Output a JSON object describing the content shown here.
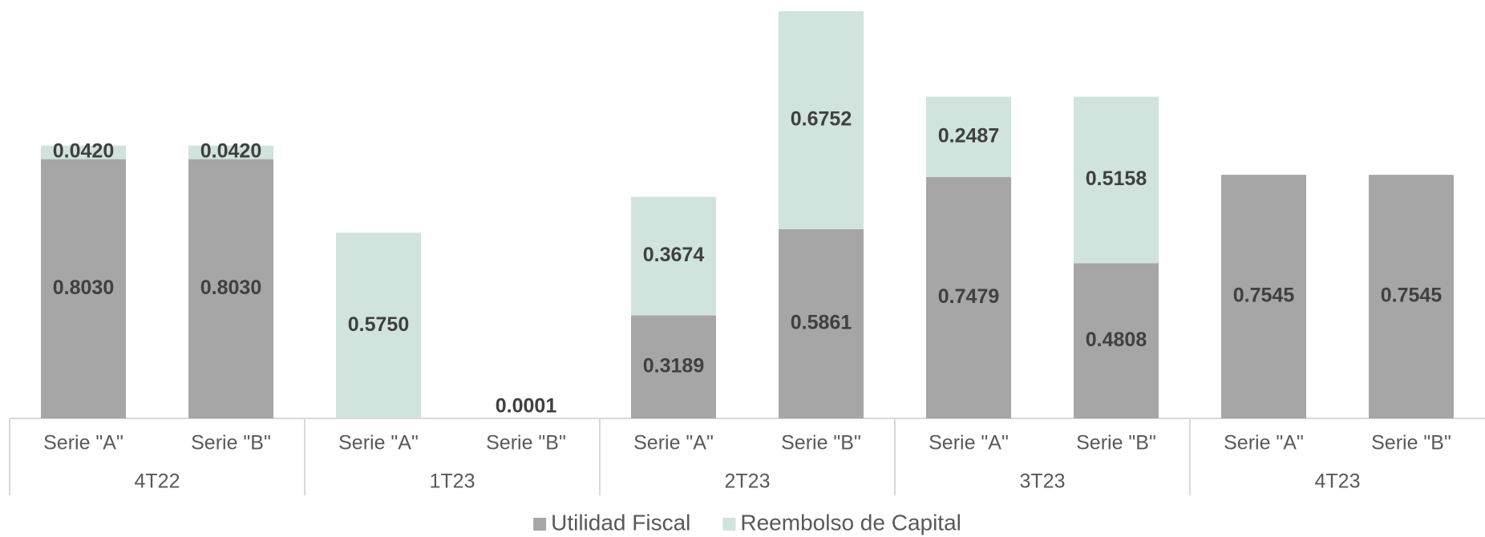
{
  "chart_data": {
    "type": "stacked_bar",
    "categories": [
      "Serie \"A\"",
      "Serie \"B\"",
      "Serie \"A\"",
      "Serie \"B\"",
      "Serie \"A\"",
      "Serie \"B\"",
      "Serie \"A\"",
      "Serie \"B\"",
      "Serie \"A\"",
      "Serie \"B\""
    ],
    "groups": [
      "4T22",
      "1T23",
      "2T23",
      "3T23",
      "4T23"
    ],
    "series": [
      {
        "name": "Utilidad Fiscal",
        "color": "#a6a6a6",
        "values": [
          0.803,
          0.803,
          null,
          null,
          0.3189,
          0.5861,
          0.7479,
          0.4808,
          0.7545,
          0.7545
        ],
        "value_labels": [
          "0.8030",
          "0.8030",
          null,
          null,
          "0.3189",
          "0.5861",
          "0.7479",
          "0.4808",
          "0.7545",
          "0.7545"
        ]
      },
      {
        "name": "Reembolso de Capital",
        "color": "#d0e3dc",
        "values": [
          0.042,
          0.042,
          0.575,
          0.0001,
          0.3674,
          0.6752,
          0.2487,
          0.5158,
          null,
          null
        ],
        "value_labels": [
          "0.0420",
          "0.0420",
          "0.5750",
          "0.0001",
          "0.3674",
          "0.6752",
          "0.2487",
          "0.5158",
          null,
          null
        ]
      }
    ],
    "legend": "bottom"
  }
}
